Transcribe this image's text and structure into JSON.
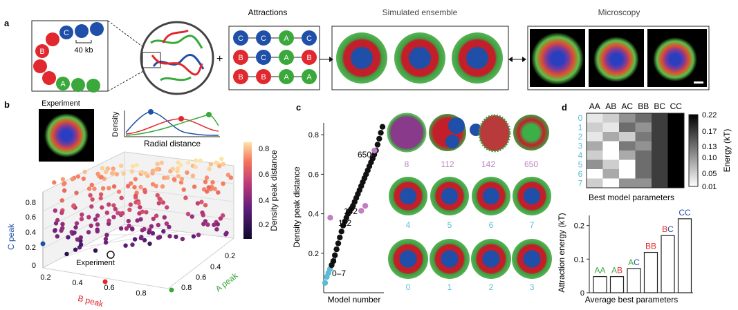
{
  "panels": {
    "a": "a",
    "b": "b",
    "c": "c",
    "d": "d"
  },
  "colors": {
    "A": "#3aa83a",
    "B": "#e0282e",
    "C": "#1f4fa8",
    "cyan": "#5bbcd6",
    "pink": "#c080c0"
  },
  "panel_a": {
    "polymer": {
      "labels": [
        "C",
        "B",
        "A"
      ],
      "scale": "40 kb"
    },
    "plus": "+",
    "attractions_title": "Attractions",
    "attraction_rows": [
      [
        "C",
        "C",
        "A",
        "C"
      ],
      [
        "B",
        "C",
        "A",
        "B"
      ],
      [
        "B",
        "B",
        "A",
        "A"
      ]
    ],
    "simulated_title": "Simulated ensemble",
    "microscopy_title": "Microscopy"
  },
  "panel_b": {
    "experiment_label": "Experiment",
    "density_plot": {
      "ylabel": "Density",
      "xlabel": "Radial distance"
    },
    "scatter_experiment_label": "Experiment",
    "axis_c": "C peak",
    "axis_b": "B peak",
    "axis_a": "A peak",
    "c_ticks": [
      "0",
      "0.2",
      "0.4",
      "0.6",
      "0.8"
    ],
    "b_ticks": [
      "0.2",
      "0.4",
      "0.6",
      "0.8"
    ],
    "a_ticks": [
      "0.2",
      "0.4",
      "0.6",
      "0.8"
    ],
    "colorbar": {
      "label": "Density peak distance",
      "ticks": [
        "0.2",
        "0.4",
        "0.6",
        "0.8"
      ]
    }
  },
  "chart_data": [
    {
      "type": "line",
      "ylabel": "Density peak distance",
      "xlabel": "Model number",
      "yticks": [
        "0.2",
        "0.4",
        "0.6",
        "0.8"
      ],
      "ylim": [
        0,
        0.86
      ],
      "series": [
        {
          "values": [
            0.05,
            0.08,
            0.1,
            0.12,
            0.14,
            0.16,
            0.19,
            0.22,
            0.25,
            0.28,
            0.31,
            0.34,
            0.36,
            0.38,
            0.4,
            0.415,
            0.425,
            0.44,
            0.46,
            0.48,
            0.5,
            0.52,
            0.54,
            0.56,
            0.58,
            0.6,
            0.62,
            0.64,
            0.66,
            0.68,
            0.7,
            0.72,
            0.75,
            0.78,
            0.81,
            0.84
          ]
        }
      ],
      "annotations": [
        "650",
        "142",
        "112",
        "8",
        "0–7"
      ],
      "models": {
        "top": [
          "8",
          "112",
          "142",
          "650"
        ],
        "mid": [
          "4",
          "5",
          "6",
          "7"
        ],
        "bot": [
          "0",
          "1",
          "2",
          "3"
        ]
      }
    },
    {
      "type": "heatmap",
      "columns": [
        "AA",
        "AB",
        "AC",
        "BB",
        "BC",
        "CC"
      ],
      "rows": [
        "0",
        "1",
        "2",
        "3",
        "4",
        "5",
        "6",
        "7"
      ],
      "values": [
        [
          0.03,
          0.05,
          0.1,
          0.13,
          0.17,
          0.22
        ],
        [
          0.05,
          0.03,
          0.13,
          0.1,
          0.17,
          0.22
        ],
        [
          0.03,
          0.08,
          0.05,
          0.12,
          0.17,
          0.22
        ],
        [
          0.08,
          0.01,
          0.12,
          0.1,
          0.17,
          0.22
        ],
        [
          0.05,
          0.01,
          0.08,
          0.13,
          0.17,
          0.22
        ],
        [
          0.1,
          0.05,
          0.01,
          0.13,
          0.17,
          0.22
        ],
        [
          0.01,
          0.08,
          0.01,
          0.13,
          0.17,
          0.22
        ],
        [
          0.05,
          0.01,
          0.1,
          0.1,
          0.17,
          0.22
        ]
      ],
      "title": "Best model parameters",
      "colorbar_label": "Energy (kT)",
      "colorbar_ticks": [
        "0.22",
        "0.17",
        "0.13",
        "0.10",
        "0.05",
        "0.01"
      ]
    },
    {
      "type": "bar",
      "categories": [
        "AA",
        "AB",
        "AC",
        "BB",
        "BC",
        "CC"
      ],
      "values": [
        0.048,
        0.048,
        0.072,
        0.12,
        0.17,
        0.22
      ],
      "ylabel": "Attraction energy (kT)",
      "xlabel": "Average best parameters",
      "yticks": [
        "0",
        "0.1",
        "0.2"
      ],
      "ylim": [
        0,
        0.23
      ]
    }
  ]
}
